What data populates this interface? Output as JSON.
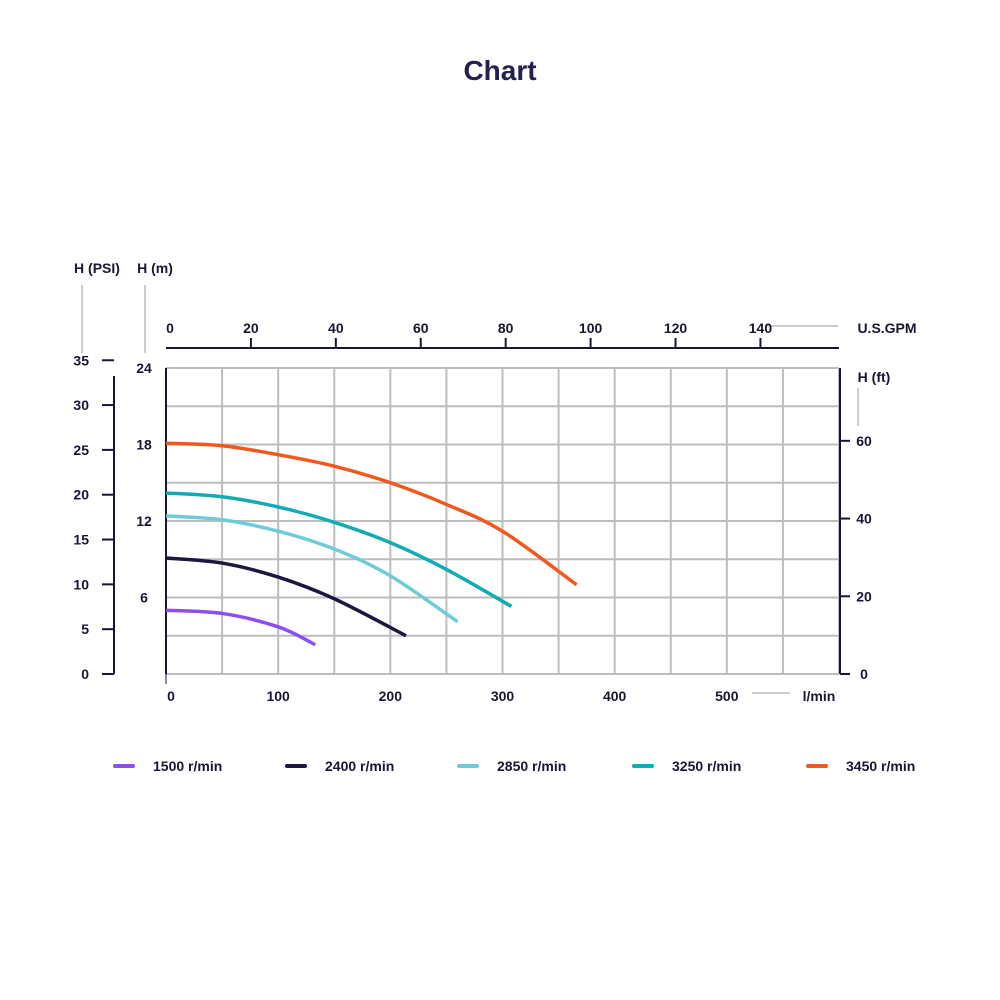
{
  "title": "Chart",
  "chart_data": {
    "type": "line",
    "x_axis_bottom": {
      "label": "l/min",
      "ticks": [
        "0",
        "100",
        "200",
        "300",
        "400",
        "500"
      ],
      "range": [
        0,
        600
      ]
    },
    "x_axis_top": {
      "label": "U.S.GPM",
      "ticks": [
        "0",
        "20",
        "40",
        "60",
        "80",
        "100",
        "120",
        "140"
      ]
    },
    "y_axis_psi": {
      "label": "H (PSI)",
      "ticks": [
        "0",
        "5",
        "10",
        "15",
        "20",
        "25",
        "30",
        "35"
      ]
    },
    "y_axis_m": {
      "label": "H (m)",
      "ticks": [
        "6",
        "12",
        "18",
        "24"
      ],
      "range": [
        0,
        24
      ]
    },
    "y_axis_ft": {
      "label": "H (ft)",
      "ticks": [
        "0",
        "20",
        "40",
        "60"
      ]
    },
    "grid": true,
    "legend_position": "bottom",
    "series": [
      {
        "name": "1500 r/min",
        "color": "#8b4ff0",
        "points": [
          [
            0,
            5.0
          ],
          [
            50,
            4.75
          ],
          [
            100,
            3.7
          ],
          [
            133,
            2.3
          ]
        ]
      },
      {
        "name": "2400 r/min",
        "color": "#1c1741",
        "points": [
          [
            0,
            9.1
          ],
          [
            50,
            8.7
          ],
          [
            100,
            7.6
          ],
          [
            150,
            5.9
          ],
          [
            214,
            3.0
          ]
        ]
      },
      {
        "name": "2850 r/min",
        "color": "#6fcbd8",
        "points": [
          [
            0,
            12.4
          ],
          [
            50,
            12.1
          ],
          [
            100,
            11.2
          ],
          [
            150,
            9.8
          ],
          [
            200,
            7.7
          ],
          [
            260,
            4.1
          ]
        ]
      },
      {
        "name": "3250 r/min",
        "color": "#12aab3",
        "points": [
          [
            0,
            14.2
          ],
          [
            50,
            13.9
          ],
          [
            100,
            13.1
          ],
          [
            150,
            11.9
          ],
          [
            200,
            10.3
          ],
          [
            250,
            8.2
          ],
          [
            308,
            5.3
          ]
        ]
      },
      {
        "name": "3450 r/min",
        "color": "#f2581b",
        "points": [
          [
            0,
            18.1
          ],
          [
            50,
            17.9
          ],
          [
            100,
            17.2
          ],
          [
            150,
            16.3
          ],
          [
            200,
            15.0
          ],
          [
            250,
            13.3
          ],
          [
            300,
            11.2
          ],
          [
            366,
            7.0
          ]
        ]
      }
    ]
  }
}
